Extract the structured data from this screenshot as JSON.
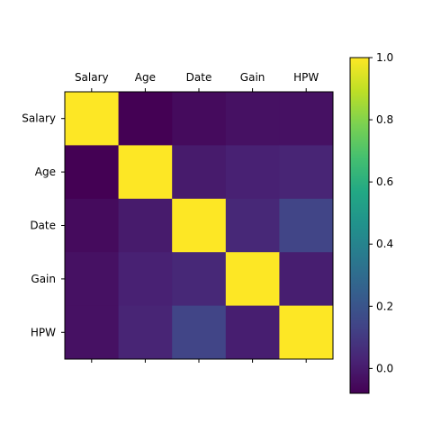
{
  "chart_data": {
    "type": "heatmap",
    "title": "",
    "xlabel": "",
    "ylabel": "",
    "x_categories": [
      "Salary",
      "Age",
      "Date",
      "Gain",
      "HPW"
    ],
    "y_categories": [
      "Salary",
      "Age",
      "Date",
      "Gain",
      "HPW"
    ],
    "x_tick_position": "top",
    "values": [
      [
        1.0,
        -0.08,
        -0.05,
        -0.03,
        -0.03
      ],
      [
        -0.08,
        1.0,
        0.0,
        0.02,
        0.03
      ],
      [
        -0.05,
        0.0,
        1.0,
        0.04,
        0.14
      ],
      [
        -0.03,
        0.02,
        0.04,
        1.0,
        0.01
      ],
      [
        -0.03,
        0.03,
        0.14,
        0.01,
        1.0
      ]
    ],
    "colormap": "viridis",
    "colorbar": {
      "vmin": -0.08,
      "vmax": 1.0,
      "ticks": [
        0.0,
        0.2,
        0.4,
        0.6,
        0.8,
        1.0
      ],
      "tick_labels": [
        "0.0",
        "0.2",
        "0.4",
        "0.6",
        "0.8",
        "1.0"
      ]
    },
    "grid": false
  }
}
